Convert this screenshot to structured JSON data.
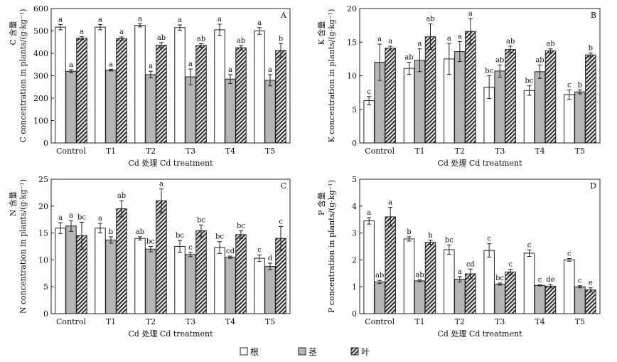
{
  "colors": {
    "root": "#ffffff",
    "stem": "#b5b5b5",
    "leaf": "#444444",
    "stroke": "#222222"
  },
  "legend": [
    {
      "key": "root",
      "swatch": "white",
      "label": "根"
    },
    {
      "key": "stem",
      "swatch": "gray",
      "label": "茎"
    },
    {
      "key": "leaf",
      "swatch": "hatch",
      "label": "叶"
    }
  ],
  "chart_data": [
    {
      "type": "bar",
      "panel": "A",
      "categories": [
        "Control",
        "T1",
        "T2",
        "T3",
        "T4",
        "T5"
      ],
      "ylim": [
        0,
        600
      ],
      "yticks": [
        0,
        100,
        200,
        300,
        400,
        500,
        600
      ],
      "ylabel_cn": "C 含量",
      "ylabel_en": "C concentration in plants/(g·kg⁻¹)",
      "xlabel": "Cd 处理 Cd treatment",
      "grid": false,
      "series": [
        {
          "key": "root",
          "values": [
            517,
            517,
            525,
            515,
            505,
            500
          ],
          "errors": [
            12,
            12,
            7,
            12,
            25,
            15
          ],
          "labels": [
            "a",
            "a",
            "a",
            "a",
            "a",
            "a"
          ]
        },
        {
          "key": "stem",
          "values": [
            320,
            325,
            305,
            295,
            285,
            280
          ],
          "errors": [
            7,
            4,
            15,
            35,
            20,
            25
          ],
          "labels": [
            "a",
            "a",
            "a",
            "a",
            "a",
            "a"
          ]
        },
        {
          "key": "leaf",
          "values": [
            468,
            466,
            436,
            435,
            425,
            413
          ],
          "errors": [
            7,
            7,
            12,
            8,
            10,
            30
          ],
          "labels": [
            "a",
            "a",
            "ab",
            "ab",
            "ab",
            "b"
          ]
        }
      ]
    },
    {
      "type": "bar",
      "panel": "B",
      "categories": [
        "Control",
        "T1",
        "T2",
        "T3",
        "T4",
        "T5"
      ],
      "ylim": [
        0,
        20
      ],
      "yticks": [
        0,
        5,
        10,
        15,
        20
      ],
      "ylabel_cn": "K 含量",
      "ylabel_en": "K concentration in plants/(g·kg⁻¹)",
      "xlabel": "Cd 处理 Cd treatment",
      "grid": false,
      "series": [
        {
          "key": "root",
          "values": [
            6.3,
            11.1,
            12.5,
            8.3,
            7.8,
            7.2
          ],
          "errors": [
            0.6,
            0.9,
            2.3,
            1.7,
            0.7,
            0.7
          ],
          "labels": [
            "c",
            "ab",
            "a",
            "bc",
            "bc",
            "c"
          ]
        },
        {
          "key": "stem",
          "values": [
            12.0,
            12.3,
            13.6,
            10.7,
            10.6,
            7.6
          ],
          "errors": [
            2.7,
            1.7,
            1.5,
            0.9,
            1.0,
            0.3
          ],
          "labels": [
            "a",
            "a",
            "a",
            "ab",
            "ab",
            "b"
          ]
        },
        {
          "key": "leaf",
          "values": [
            14.1,
            15.8,
            16.6,
            13.9,
            13.7,
            13.1
          ],
          "errors": [
            0.3,
            1.9,
            1.9,
            0.5,
            0.3,
            0.3
          ],
          "labels": [
            "a",
            "ab",
            "a",
            "ab",
            "ab",
            "b"
          ]
        }
      ]
    },
    {
      "type": "bar",
      "panel": "C",
      "categories": [
        "Control",
        "T1",
        "T2",
        "T3",
        "T4",
        "T5"
      ],
      "ylim": [
        0,
        25
      ],
      "yticks": [
        0,
        5,
        10,
        15,
        20,
        25
      ],
      "ylabel_cn": "N 含量",
      "ylabel_en": "N concentration in plants/(g·kg⁻¹)",
      "xlabel": "Cd 处理 Cd treatment",
      "grid": false,
      "series": [
        {
          "key": "root",
          "values": [
            15.9,
            15.9,
            14.0,
            12.5,
            12.3,
            10.3
          ],
          "errors": [
            1.0,
            0.9,
            0.3,
            1.1,
            1.1,
            0.6
          ],
          "labels": [
            "a",
            "a",
            "ab",
            "bc",
            "bc",
            "c"
          ]
        },
        {
          "key": "stem",
          "values": [
            16.3,
            13.7,
            12.0,
            11.0,
            10.5,
            8.8
          ],
          "errors": [
            1.0,
            0.6,
            0.5,
            0.4,
            0.2,
            0.6
          ],
          "labels": [
            "a",
            "b",
            "bc",
            "c",
            "cd",
            "d"
          ]
        },
        {
          "key": "leaf",
          "values": [
            14.5,
            19.5,
            21.0,
            15.4,
            14.7,
            14.0
          ],
          "errors": [
            2.5,
            1.5,
            2.2,
            1.1,
            0.7,
            2.2
          ],
          "labels": [
            "bc",
            "ab",
            "a",
            "bc",
            "bc",
            "c"
          ]
        }
      ]
    },
    {
      "type": "bar",
      "panel": "D",
      "categories": [
        "Control",
        "T1",
        "T2",
        "T3",
        "T4",
        "T5"
      ],
      "ylim": [
        0,
        5
      ],
      "yticks": [
        0,
        1,
        2,
        3,
        4,
        5
      ],
      "ylabel_cn": "P 含量",
      "ylabel_en": "P concentration in plants/(g·kg⁻¹)",
      "xlabel": "Cd 处理 Cd treatment",
      "grid": false,
      "series": [
        {
          "key": "root",
          "values": [
            3.45,
            2.78,
            2.38,
            2.35,
            2.25,
            2.0
          ],
          "errors": [
            0.12,
            0.08,
            0.17,
            0.25,
            0.12,
            0.05
          ],
          "labels": [
            "a",
            "b",
            "bc",
            "c",
            "c",
            "c"
          ]
        },
        {
          "key": "stem",
          "values": [
            1.18,
            1.22,
            1.28,
            1.1,
            1.05,
            1.0
          ],
          "errors": [
            0.06,
            0.04,
            0.1,
            0.04,
            0.02,
            0.04
          ],
          "labels": [
            "ab",
            "ab",
            "a",
            "bc",
            "c",
            "c"
          ]
        },
        {
          "key": "leaf",
          "values": [
            3.6,
            2.65,
            1.48,
            1.55,
            1.02,
            0.88
          ],
          "errors": [
            0.35,
            0.08,
            0.18,
            0.1,
            0.06,
            0.08
          ],
          "labels": [
            "a",
            "b",
            "cd",
            "c",
            "de",
            "e"
          ]
        }
      ]
    }
  ]
}
